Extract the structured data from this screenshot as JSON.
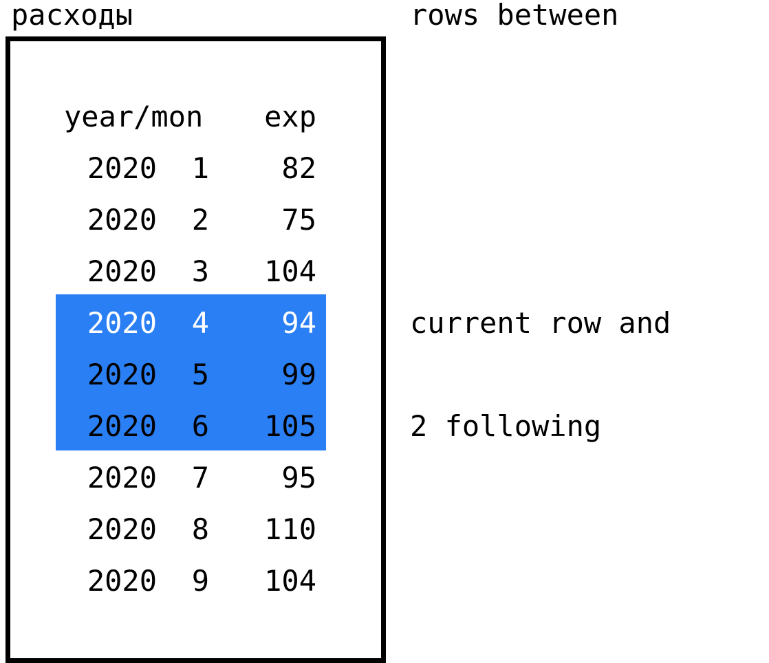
{
  "box_title": "расходы",
  "table": {
    "header": {
      "year_mon": "year/mon",
      "exp": "exp"
    },
    "rows": [
      {
        "year": "2020",
        "mon": "1",
        "exp": "82"
      },
      {
        "year": "2020",
        "mon": "2",
        "exp": "75"
      },
      {
        "year": "2020",
        "mon": "3",
        "exp": "104"
      },
      {
        "year": "2020",
        "mon": "4",
        "exp": "94"
      },
      {
        "year": "2020",
        "mon": "5",
        "exp": "99"
      },
      {
        "year": "2020",
        "mon": "6",
        "exp": "105"
      },
      {
        "year": "2020",
        "mon": "7",
        "exp": "95"
      },
      {
        "year": "2020",
        "mon": "8",
        "exp": "110"
      },
      {
        "year": "2020",
        "mon": "9",
        "exp": "104"
      }
    ],
    "highlighted_rows": [
      3,
      4,
      5
    ],
    "highlight_color": "#2b7ff4"
  },
  "notes": {
    "top": "rows between",
    "middle_1": "current row and",
    "middle_2": "2 following"
  }
}
